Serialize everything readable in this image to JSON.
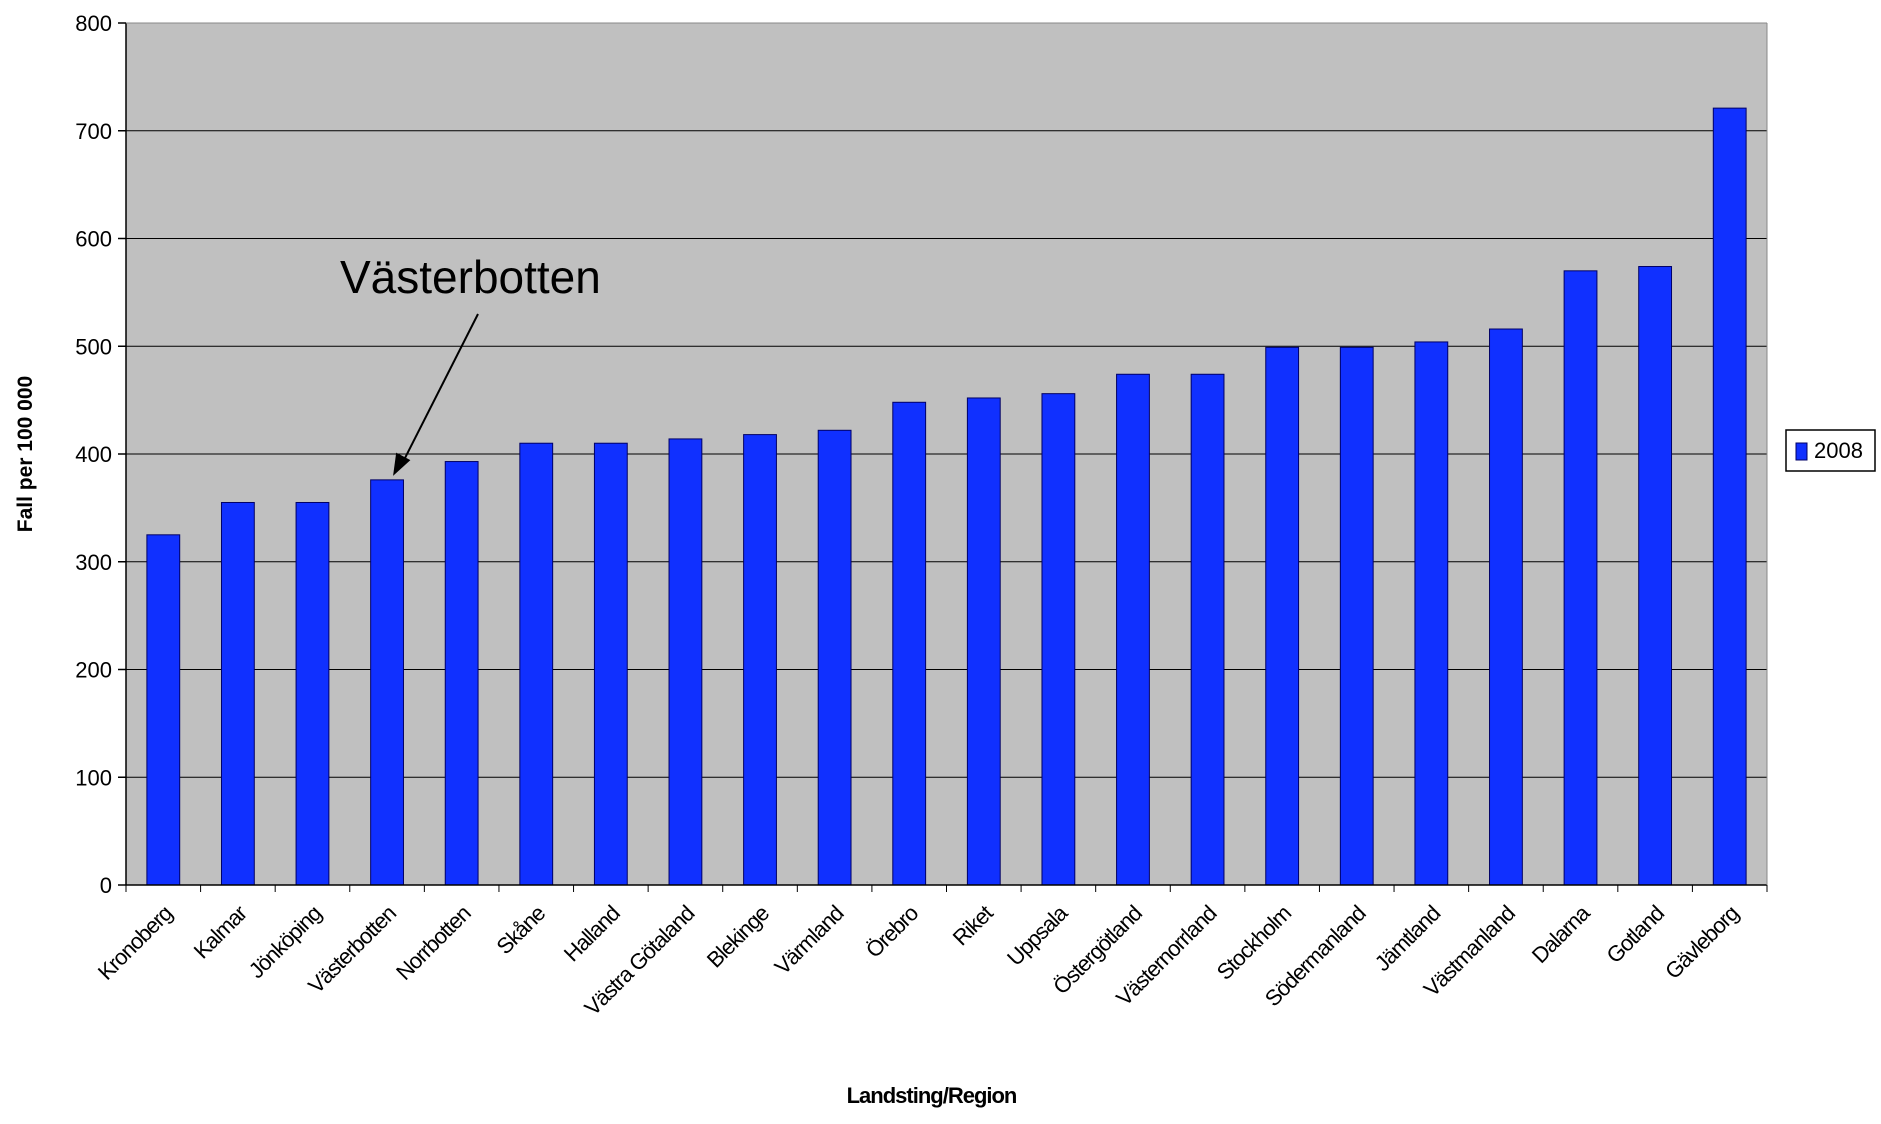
{
  "chart_data": {
    "type": "bar",
    "categories": [
      "Kronoberg",
      "Kalmar",
      "Jönköping",
      "Västerbotten",
      "Norrbotten",
      "Skåne",
      "Halland",
      "Västra Götaland",
      "Blekinge",
      "Värmland",
      "Örebro",
      "Riket",
      "Uppsala",
      "Östergötland",
      "Västernorrland",
      "Stockholm",
      "Södermanland",
      "Jämtland",
      "Västmanland",
      "Dalarna",
      "Gotland",
      "Gävleborg"
    ],
    "series": [
      {
        "name": "2008",
        "values": [
          325,
          355,
          355,
          376,
          393,
          410,
          410,
          414,
          418,
          422,
          448,
          452,
          456,
          474,
          474,
          499,
          499,
          504,
          516,
          570,
          574,
          721
        ]
      }
    ],
    "xlabel": "Landsting/Region",
    "ylabel": "Fall per 100 000",
    "ylim": [
      0,
      800
    ],
    "yticks": [
      "0",
      "100",
      "200",
      "300",
      "400",
      "500",
      "600",
      "700",
      "800"
    ],
    "grid": true,
    "legend_position": "right",
    "annotation": {
      "text": "Västerbotten",
      "target_category": "Västerbotten"
    },
    "colors": {
      "bar": "#1030ff",
      "bar_edge": "#000066",
      "plot_bg": "#c0c0c0",
      "grid": "#000000"
    }
  }
}
